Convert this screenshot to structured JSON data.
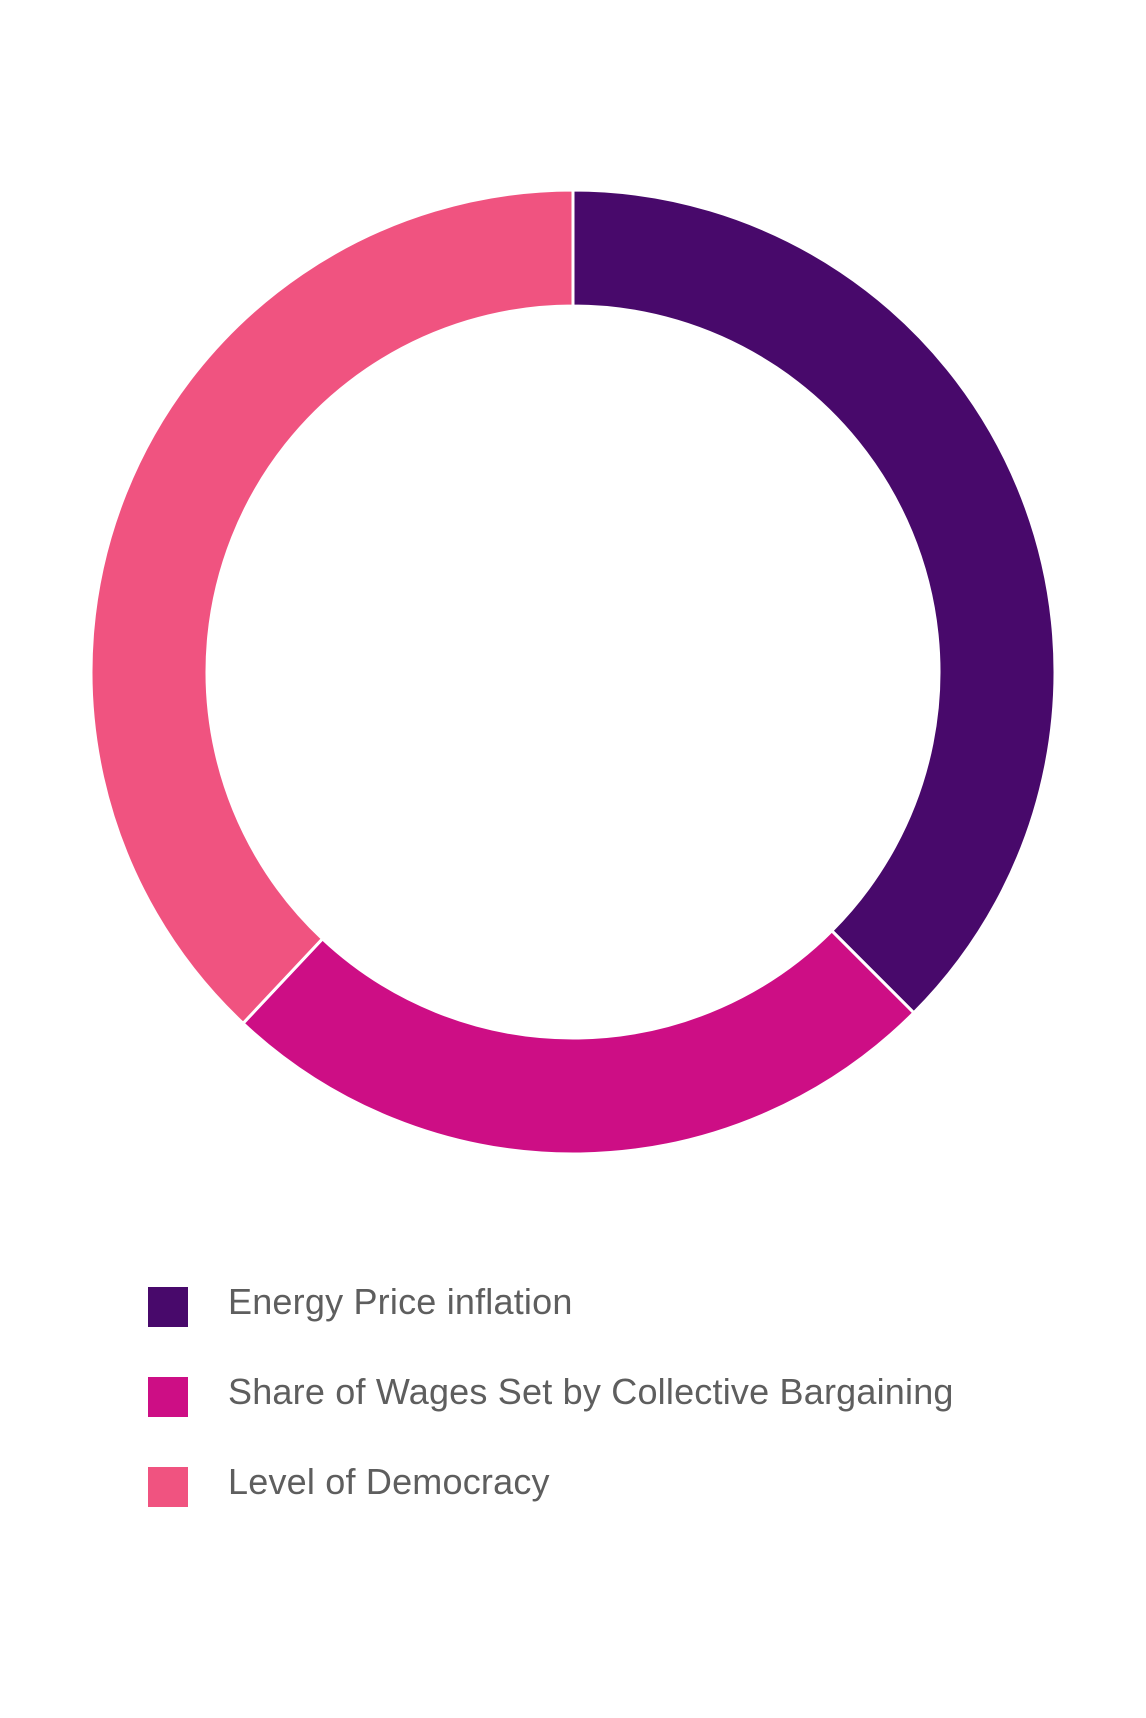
{
  "chart_data": {
    "type": "pie",
    "donut": true,
    "title": "",
    "slices": [
      {
        "label": "Energy Price inflation",
        "value": 37.5,
        "color": "#48096b"
      },
      {
        "label": "Share of Wages Set by Collective Bargaining",
        "value": 24.5,
        "color": "#cd0e85"
      },
      {
        "label": "Level of Democracy",
        "value": 38.0,
        "color": "#f05380"
      }
    ],
    "legend_position": "bottom-left"
  }
}
